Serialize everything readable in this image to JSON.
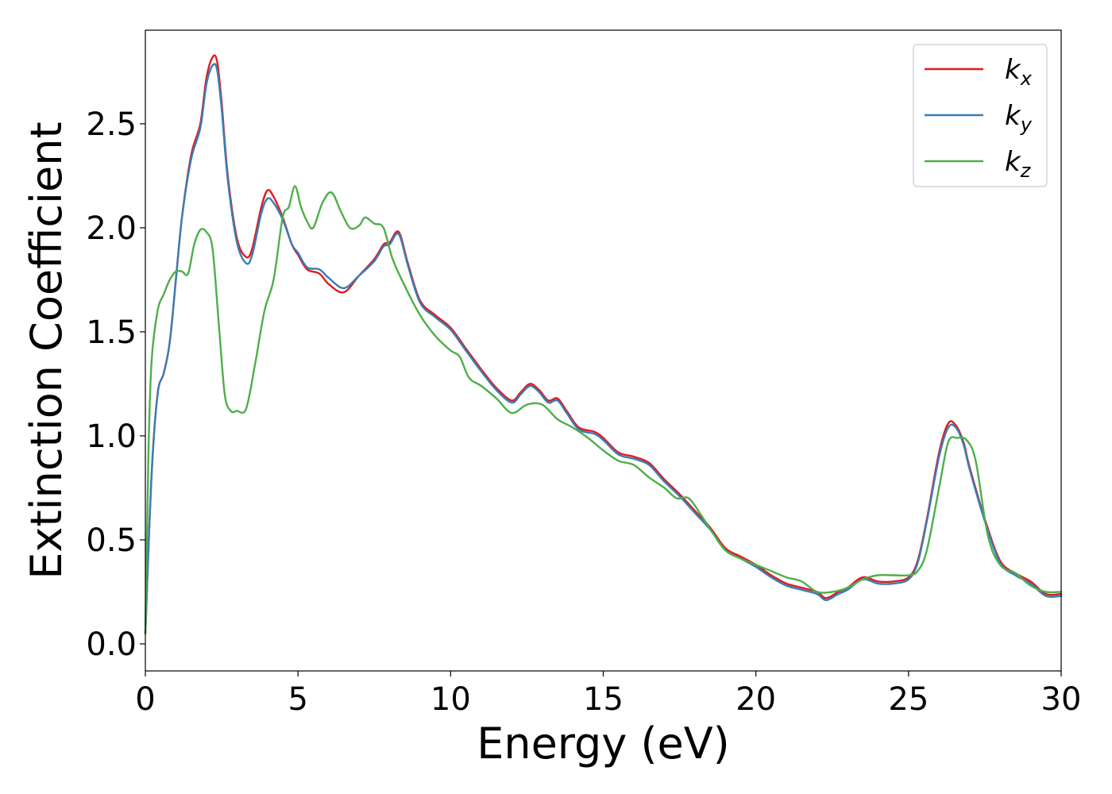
{
  "chart_data": {
    "type": "line",
    "xlabel": "Energy (eV)",
    "ylabel": "Extinction Coefficient",
    "xlim": [
      0,
      30
    ],
    "ylim": [
      -0.13,
      2.95
    ],
    "xticks": [
      0,
      5,
      10,
      15,
      20,
      25,
      30
    ],
    "xtick_labels": [
      "0",
      "5",
      "10",
      "15",
      "20",
      "25",
      "30"
    ],
    "yticks": [
      0.0,
      0.5,
      1.0,
      1.5,
      2.0,
      2.5
    ],
    "ytick_labels": [
      "0.0",
      "0.5",
      "1.0",
      "1.5",
      "2.0",
      "2.5"
    ],
    "grid": false,
    "legend_position": "top-right",
    "series": [
      {
        "name": "kx",
        "symbol": "k",
        "subscript": "x",
        "color": "#e41a1c",
        "x": [
          0,
          0.2,
          0.4,
          0.6,
          0.8,
          1.0,
          1.2,
          1.5,
          1.8,
          2.0,
          2.2,
          2.35,
          2.5,
          2.7,
          3.0,
          3.3,
          3.5,
          3.8,
          4.0,
          4.2,
          4.5,
          4.8,
          5.0,
          5.3,
          5.7,
          6.0,
          6.5,
          7.0,
          7.5,
          7.8,
          8.0,
          8.3,
          8.6,
          9.0,
          9.5,
          10.0,
          10.5,
          11.0,
          11.5,
          12.0,
          12.3,
          12.6,
          12.9,
          13.2,
          13.5,
          13.8,
          14.2,
          14.7,
          15.0,
          15.5,
          16.0,
          16.5,
          17.0,
          17.5,
          18.0,
          18.5,
          19.0,
          19.5,
          20.0,
          20.5,
          21.0,
          21.5,
          22.0,
          22.3,
          22.7,
          23.0,
          23.5,
          24.0,
          24.5,
          25.0,
          25.3,
          25.6,
          26.0,
          26.3,
          26.55,
          26.8,
          27.0,
          27.5,
          28.0,
          28.5,
          29.0,
          29.5,
          30.0
        ],
        "values": [
          0.05,
          0.8,
          1.2,
          1.3,
          1.45,
          1.75,
          2.05,
          2.35,
          2.5,
          2.72,
          2.82,
          2.8,
          2.6,
          2.25,
          1.95,
          1.86,
          1.9,
          2.1,
          2.18,
          2.15,
          2.05,
          1.92,
          1.87,
          1.8,
          1.78,
          1.73,
          1.69,
          1.77,
          1.85,
          1.92,
          1.93,
          1.98,
          1.83,
          1.65,
          1.58,
          1.52,
          1.42,
          1.32,
          1.23,
          1.17,
          1.21,
          1.25,
          1.22,
          1.17,
          1.18,
          1.12,
          1.04,
          1.02,
          0.99,
          0.92,
          0.9,
          0.87,
          0.79,
          0.72,
          0.64,
          0.56,
          0.46,
          0.42,
          0.38,
          0.33,
          0.29,
          0.27,
          0.25,
          0.22,
          0.25,
          0.27,
          0.32,
          0.3,
          0.3,
          0.32,
          0.4,
          0.6,
          0.92,
          1.06,
          1.05,
          0.97,
          0.85,
          0.6,
          0.4,
          0.34,
          0.3,
          0.24,
          0.24
        ]
      },
      {
        "name": "ky",
        "symbol": "k",
        "subscript": "y",
        "color": "#377eb8",
        "x": [
          0,
          0.2,
          0.4,
          0.6,
          0.8,
          1.0,
          1.2,
          1.5,
          1.8,
          2.0,
          2.2,
          2.35,
          2.5,
          2.7,
          3.0,
          3.3,
          3.5,
          3.8,
          4.0,
          4.2,
          4.5,
          4.8,
          5.0,
          5.3,
          5.7,
          6.0,
          6.5,
          7.0,
          7.5,
          7.8,
          8.0,
          8.3,
          8.6,
          9.0,
          9.5,
          10.0,
          10.5,
          11.0,
          11.5,
          12.0,
          12.3,
          12.6,
          12.9,
          13.2,
          13.5,
          13.8,
          14.2,
          14.7,
          15.0,
          15.5,
          16.0,
          16.5,
          17.0,
          17.5,
          18.0,
          18.5,
          19.0,
          19.5,
          20.0,
          20.5,
          21.0,
          21.5,
          22.0,
          22.3,
          22.7,
          23.0,
          23.5,
          24.0,
          24.5,
          25.0,
          25.3,
          25.6,
          26.0,
          26.3,
          26.55,
          26.8,
          27.0,
          27.5,
          28.0,
          28.5,
          29.0,
          29.5,
          30.0
        ],
        "values": [
          0.05,
          0.8,
          1.2,
          1.3,
          1.45,
          1.75,
          2.05,
          2.33,
          2.48,
          2.69,
          2.78,
          2.76,
          2.57,
          2.23,
          1.93,
          1.83,
          1.87,
          2.07,
          2.14,
          2.12,
          2.04,
          1.92,
          1.88,
          1.81,
          1.8,
          1.76,
          1.71,
          1.77,
          1.84,
          1.91,
          1.92,
          1.97,
          1.82,
          1.64,
          1.57,
          1.51,
          1.41,
          1.31,
          1.22,
          1.16,
          1.2,
          1.24,
          1.21,
          1.16,
          1.17,
          1.11,
          1.03,
          1.01,
          0.98,
          0.91,
          0.89,
          0.86,
          0.78,
          0.71,
          0.63,
          0.55,
          0.45,
          0.41,
          0.37,
          0.32,
          0.28,
          0.26,
          0.24,
          0.21,
          0.24,
          0.26,
          0.31,
          0.29,
          0.29,
          0.31,
          0.39,
          0.59,
          0.9,
          1.04,
          1.04,
          0.96,
          0.84,
          0.59,
          0.39,
          0.33,
          0.29,
          0.23,
          0.23
        ]
      },
      {
        "name": "kz",
        "symbol": "k",
        "subscript": "z",
        "color": "#4daf4a",
        "x": [
          0,
          0.1,
          0.2,
          0.4,
          0.6,
          0.8,
          1.0,
          1.2,
          1.4,
          1.6,
          1.8,
          2.0,
          2.2,
          2.4,
          2.6,
          2.8,
          3.0,
          3.3,
          3.6,
          3.9,
          4.2,
          4.5,
          4.7,
          4.9,
          5.1,
          5.3,
          5.5,
          5.8,
          6.1,
          6.4,
          6.7,
          7.0,
          7.2,
          7.5,
          7.8,
          8.1,
          8.5,
          9.0,
          9.5,
          10.0,
          10.3,
          10.6,
          11.0,
          11.5,
          12.0,
          12.5,
          13.0,
          13.5,
          14.0,
          14.5,
          15.0,
          15.5,
          16.0,
          16.5,
          17.0,
          17.4,
          17.8,
          18.2,
          18.6,
          19.0,
          19.5,
          20.0,
          20.5,
          21.0,
          21.5,
          22.0,
          22.5,
          23.0,
          23.5,
          24.0,
          24.5,
          25.0,
          25.3,
          25.6,
          26.0,
          26.3,
          26.6,
          26.9,
          27.2,
          27.6,
          28.0,
          28.5,
          29.0,
          29.5,
          30.0
        ],
        "values": [
          0.05,
          0.9,
          1.35,
          1.6,
          1.68,
          1.75,
          1.79,
          1.79,
          1.78,
          1.92,
          1.99,
          1.98,
          1.9,
          1.55,
          1.2,
          1.12,
          1.12,
          1.13,
          1.35,
          1.6,
          1.75,
          2.05,
          2.1,
          2.2,
          2.1,
          2.03,
          2.0,
          2.12,
          2.17,
          2.08,
          2.0,
          2.01,
          2.05,
          2.02,
          2.0,
          1.85,
          1.72,
          1.58,
          1.48,
          1.41,
          1.38,
          1.28,
          1.24,
          1.18,
          1.11,
          1.15,
          1.15,
          1.08,
          1.04,
          0.99,
          0.93,
          0.88,
          0.86,
          0.8,
          0.75,
          0.7,
          0.7,
          0.62,
          0.53,
          0.45,
          0.41,
          0.38,
          0.35,
          0.32,
          0.3,
          0.25,
          0.25,
          0.27,
          0.31,
          0.33,
          0.33,
          0.33,
          0.35,
          0.45,
          0.75,
          0.97,
          0.99,
          0.98,
          0.88,
          0.52,
          0.38,
          0.34,
          0.28,
          0.25,
          0.25
        ]
      }
    ]
  }
}
